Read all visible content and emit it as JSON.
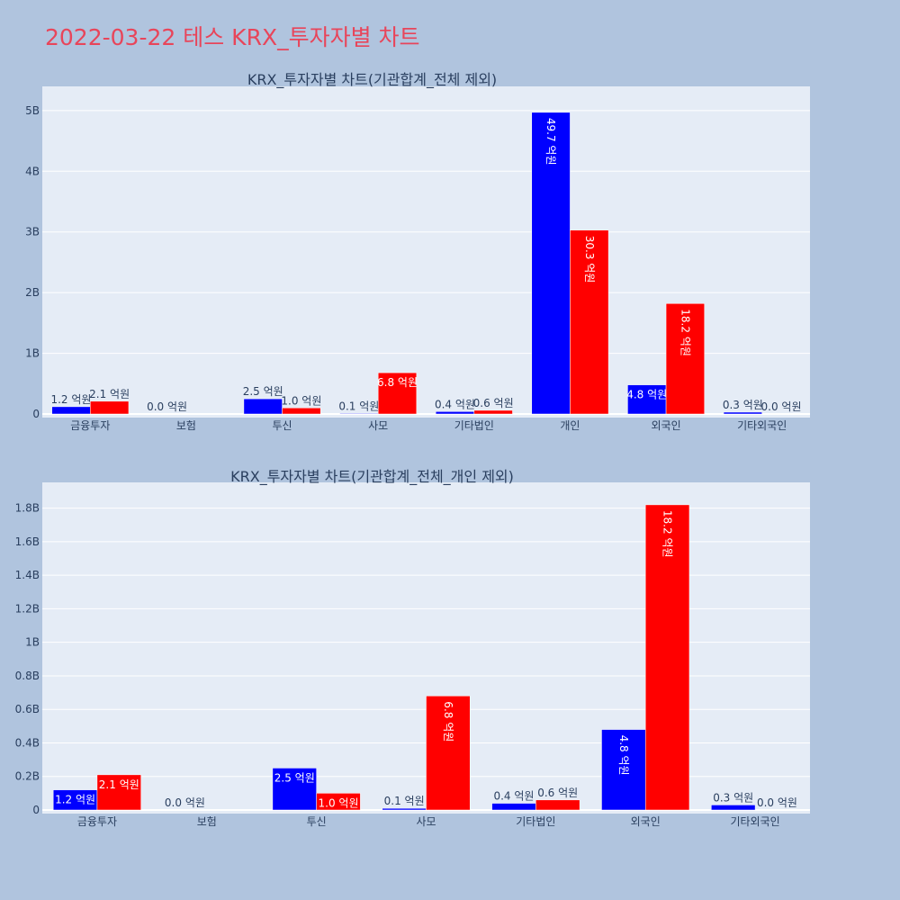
{
  "page": {
    "title": "2022-03-22 테스 KRX_투자자별 차트",
    "title_color": "#e8455a",
    "background": "#b0c4de",
    "plot_background": "#e5ecf6"
  },
  "chart_data": [
    {
      "type": "bar",
      "title": "KRX_투자자별 차트(기관합계_전체 제외)",
      "categories": [
        "금융투자",
        "보험",
        "투신",
        "사모",
        "기타법인",
        "개인",
        "외국인",
        "기타외국인"
      ],
      "series": [
        {
          "color": "#0000ff",
          "values": [
            120000000,
            0,
            250000000,
            10000000,
            40000000,
            4970000000,
            480000000,
            30000000
          ],
          "labels": [
            "1.2 억원",
            "0.0 억원",
            "2.5 억원",
            "0.1 억원",
            "0.4 억원",
            "49.7 억원",
            "4.8 억원",
            "0.3 억원"
          ]
        },
        {
          "color": "#ff0000",
          "values": [
            210000000,
            null,
            100000000,
            680000000,
            60000000,
            3030000000,
            1820000000,
            0
          ],
          "labels": [
            "2.1 억원",
            "",
            "1.0 억원",
            "6.8 억원",
            "0.6 억원",
            "30.3 억원",
            "18.2 억원",
            "0.0 억원"
          ]
        }
      ],
      "yticks": [
        "0",
        "1B",
        "2B",
        "3B",
        "4B",
        "5B"
      ],
      "ylim": [
        0,
        5250000000
      ],
      "grid": true
    },
    {
      "type": "bar",
      "title": "KRX_투자자별 차트(기관합계_전체_개인 제외)",
      "categories": [
        "금융투자",
        "보험",
        "투신",
        "사모",
        "기타법인",
        "외국인",
        "기타외국인"
      ],
      "series": [
        {
          "color": "#0000ff",
          "values": [
            120000000,
            0,
            250000000,
            10000000,
            40000000,
            480000000,
            30000000
          ],
          "labels": [
            "1.2 억원",
            "0.0 억원",
            "2.5 억원",
            "0.1 억원",
            "0.4 억원",
            "4.8 억원",
            "0.3 억원"
          ]
        },
        {
          "color": "#ff0000",
          "values": [
            210000000,
            null,
            100000000,
            680000000,
            60000000,
            1820000000,
            0
          ],
          "labels": [
            "2.1 억원",
            "",
            "1.0 억원",
            "6.8 억원",
            "0.6 억원",
            "18.2 억원",
            "0.0 억원"
          ]
        }
      ],
      "yticks": [
        "0",
        "0.2B",
        "0.4B",
        "0.6B",
        "0.8B",
        "1B",
        "1.2B",
        "1.4B",
        "1.6B",
        "1.8B"
      ],
      "ylim": [
        0,
        1900000000
      ],
      "grid": true
    }
  ]
}
